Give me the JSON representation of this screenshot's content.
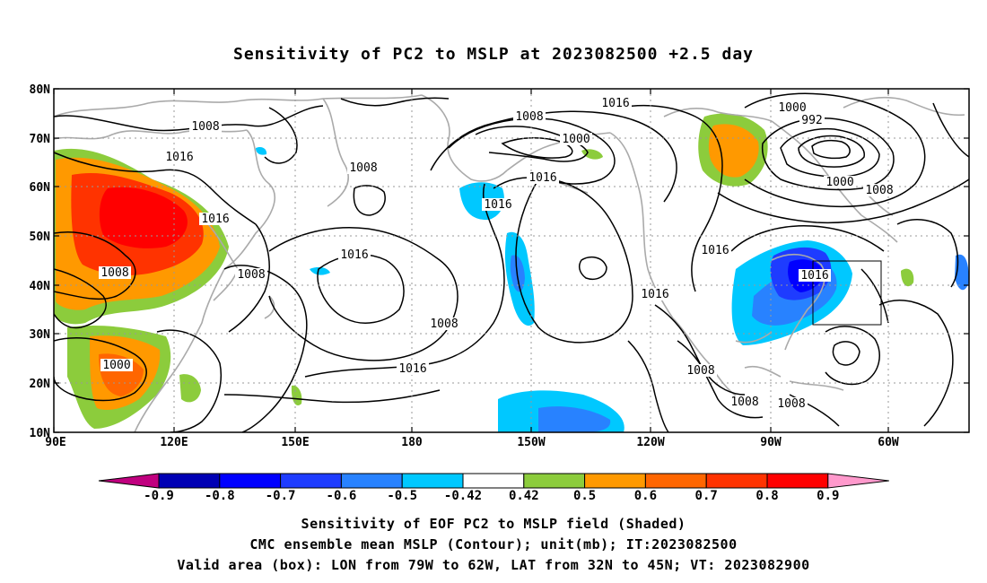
{
  "title": "Sensitivity of PC2 to MSLP at 2023082500 +2.5 day",
  "map": {
    "lat_ticks": [
      "80N",
      "70N",
      "60N",
      "50N",
      "40N",
      "30N",
      "20N",
      "10N"
    ],
    "lon_ticks": [
      "90E",
      "120E",
      "150E",
      "180",
      "150W",
      "120W",
      "90W",
      "60W"
    ],
    "contour_labels": [
      "1008",
      "1016",
      "1016",
      "1008",
      "1008",
      "1000",
      "1008",
      "1016",
      "1008",
      "1016",
      "1016",
      "1008",
      "1000",
      "1016",
      "1016",
      "1016",
      "1000",
      "992",
      "1000",
      "1008",
      "1016",
      "1016",
      "1008",
      "1008",
      "1008"
    ],
    "valid_box": {
      "lon_from": "79W",
      "lon_to": "62W",
      "lat_from": "32N",
      "lat_to": "45N"
    }
  },
  "colorbar": {
    "labels": [
      "-0.9",
      "-0.8",
      "-0.7",
      "-0.6",
      "-0.5",
      "-0.42",
      "0.42",
      "0.5",
      "0.6",
      "0.7",
      "0.8",
      "0.9"
    ],
    "colors": [
      "#c0007f",
      "#0000b4",
      "#0000ff",
      "#1e3cff",
      "#2882ff",
      "#00c8ff",
      "#ffffff",
      "#8ccc3c",
      "#ff9900",
      "#ff6600",
      "#ff3300",
      "#ff0000",
      "#ff99cc"
    ]
  },
  "captions": {
    "line1": "Sensitivity of EOF PC2 to MSLP field (Shaded)",
    "line2": "CMC ensemble mean MSLP (Contour); unit(mb); IT:2023082500",
    "line3": "Valid area (box): LON from 79W to 62W, LAT from 32N to 45N; VT: 2023082900"
  }
}
